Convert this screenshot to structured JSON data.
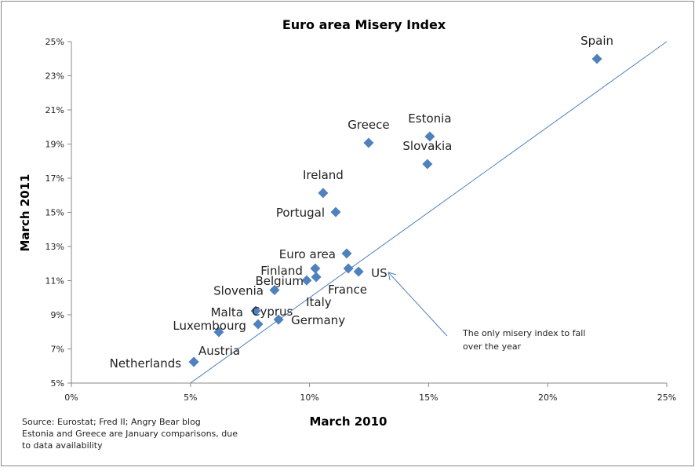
{
  "chart_data": {
    "type": "scatter",
    "title": "Euro area Misery Index",
    "xlabel": "March 2010",
    "ylabel": "March 2011",
    "xlim": [
      0,
      25
    ],
    "ylim": [
      5,
      25
    ],
    "x_ticks": [
      "0%",
      "5%",
      "10%",
      "15%",
      "20%",
      "25%"
    ],
    "y_ticks": [
      "5%",
      "7%",
      "9%",
      "11%",
      "13%",
      "15%",
      "17%",
      "19%",
      "21%",
      "23%",
      "25%"
    ],
    "grid": false,
    "marker_color": "#4f81bd",
    "line_color": "#4f81bd",
    "reference_line": {
      "from": [
        5,
        5
      ],
      "to": [
        25,
        25
      ]
    },
    "points": [
      {
        "name": "Spain",
        "x": 22.07,
        "y": 23.99
      },
      {
        "name": "Greece",
        "x": 12.48,
        "y": 19.07
      },
      {
        "name": "Estonia",
        "x": 15.05,
        "y": 19.44
      },
      {
        "name": "Slovakia",
        "x": 14.95,
        "y": 17.83
      },
      {
        "name": "Ireland",
        "x": 10.57,
        "y": 16.13
      },
      {
        "name": "Portugal",
        "x": 11.1,
        "y": 15.02
      },
      {
        "name": "Euro area",
        "x": 11.56,
        "y": 12.59
      },
      {
        "name": "Finland",
        "x": 10.24,
        "y": 11.71
      },
      {
        "name": "Belgium",
        "x": 9.88,
        "y": 11.02
      },
      {
        "name": "Italy",
        "x": 10.28,
        "y": 11.21
      },
      {
        "name": "France",
        "x": 11.63,
        "y": 11.71
      },
      {
        "name": "US",
        "x": 12.06,
        "y": 11.53
      },
      {
        "name": "Slovenia",
        "x": 8.53,
        "y": 10.45
      },
      {
        "name": "Malta",
        "x": 7.74,
        "y": 9.23
      },
      {
        "name": "Cyprus",
        "x": 7.84,
        "y": 8.45
      },
      {
        "name": "Germany",
        "x": 8.7,
        "y": 8.72
      },
      {
        "name": "Luxembourg",
        "x": 6.19,
        "y": 7.99
      },
      {
        "name": "Austria",
        "x": 5.14,
        "y": 6.24
      },
      {
        "name": "Netherlands",
        "x": 5.14,
        "y": 6.24
      }
    ],
    "annotation": {
      "lines": [
        "The only misery index to fall",
        "over the year"
      ],
      "points_to": "US"
    },
    "source_notes": [
      "Source: Eurostat; Fred II; Angry Bear blog",
      "Estonia and Greece are January comparisons, due",
      "to data availability"
    ]
  }
}
